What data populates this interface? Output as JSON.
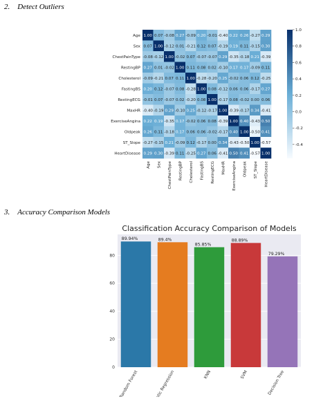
{
  "sections": [
    {
      "number": "2.",
      "title": "Detect Outliers"
    },
    {
      "number": "3.",
      "title": "Accuracy Comparison Models"
    }
  ],
  "chart_data": [
    {
      "type": "heatmap",
      "labels": [
        "Age",
        "Sex",
        "ChestPainType",
        "RestingBP",
        "Cholesterol",
        "FastingBS",
        "RestingECG",
        "MaxHR",
        "ExerciseAngina",
        "Oldpeak",
        "ST_Slope",
        "HeartDisease"
      ],
      "matrix": [
        [
          "1.00",
          "0.07",
          "-0.08",
          "0.27",
          "-0.09",
          "0.20",
          "-0.01",
          "-0.40",
          "0.22",
          "0.26",
          "-0.27",
          "0.29"
        ],
        [
          "0.07",
          "1.00",
          "-0.12",
          "0.01",
          "-0.21",
          "0.12",
          "0.07",
          "-0.19",
          "0.19",
          "0.11",
          "-0.15",
          "0.30"
        ],
        [
          "-0.08",
          "-0.12",
          "1.00",
          "-0.02",
          "0.07",
          "-0.07",
          "-0.07",
          "0.29",
          "-0.35",
          "-0.18",
          "0.21",
          "-0.39"
        ],
        [
          "0.27",
          "0.01",
          "-0.02",
          "1.00",
          "0.11",
          "0.08",
          "0.02",
          "-0.10",
          "0.17",
          "0.17",
          "-0.09",
          "0.11"
        ],
        [
          "-0.09",
          "-0.21",
          "0.07",
          "0.11",
          "1.00",
          "-0.28",
          "-0.20",
          "0.25",
          "-0.02",
          "0.06",
          "0.12",
          "-0.25"
        ],
        [
          "0.20",
          "0.12",
          "-0.07",
          "0.08",
          "-0.28",
          "1.00",
          "0.08",
          "-0.12",
          "0.06",
          "0.06",
          "-0.17",
          "0.27"
        ],
        [
          "-0.01",
          "0.07",
          "-0.07",
          "0.02",
          "-0.20",
          "0.08",
          "1.00",
          "-0.17",
          "0.08",
          "-0.02",
          "0.00",
          "0.06"
        ],
        [
          "-0.40",
          "-0.19",
          "0.29",
          "-0.10",
          "0.25",
          "-0.12",
          "-0.17",
          "1.00",
          "-0.39",
          "-0.17",
          "0.34",
          "-0.41"
        ],
        [
          "0.22",
          "0.19",
          "-0.35",
          "0.17",
          "-0.02",
          "0.06",
          "0.08",
          "-0.39",
          "1.00",
          "0.40",
          "-0.43",
          "0.50"
        ],
        [
          "0.26",
          "0.11",
          "-0.18",
          "0.17",
          "0.06",
          "0.06",
          "-0.02",
          "-0.17",
          "0.40",
          "1.00",
          "-0.50",
          "0.41"
        ],
        [
          "-0.27",
          "-0.15",
          "0.21",
          "-0.09",
          "0.12",
          "-0.17",
          "0.00",
          "0.34",
          "-0.43",
          "-0.50",
          "1.00",
          "-0.57"
        ],
        [
          "0.29",
          "0.30",
          "-0.39",
          "0.11",
          "-0.25",
          "0.27",
          "0.06",
          "-0.41",
          "0.50",
          "0.41",
          "-0.57",
          "1.00"
        ]
      ],
      "colorbar_ticks": [
        "1.0",
        "0.8",
        "0.6",
        "0.4",
        "0.2",
        "0.0",
        "-0.2",
        "-0.4"
      ],
      "colormap": {
        "low": "#f7fbff",
        "mid": "#6aaed6",
        "high": "#08306b"
      }
    },
    {
      "type": "bar",
      "title": "Classification Accuracy Comparison of Models",
      "categories": [
        "Random Forest",
        "Logistic Regression",
        "KNN",
        "SVM",
        "Decision Tree"
      ],
      "values": [
        89.94,
        89.4,
        85.85,
        88.89,
        79.29
      ],
      "value_labels": [
        "89.94%",
        "89.4%",
        "85.85%",
        "88.89%",
        "79.29%"
      ],
      "colors": [
        "#2b78a8",
        "#e57c20",
        "#2e9b3b",
        "#c8393a",
        "#9574b8"
      ],
      "ylim": [
        0,
        95
      ],
      "yticks": [
        "0",
        "20",
        "40",
        "60",
        "80"
      ],
      "grid": true,
      "plot_background": "#eaeaf2"
    }
  ]
}
